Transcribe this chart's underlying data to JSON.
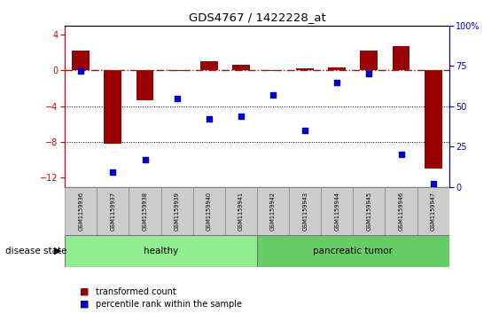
{
  "title": "GDS4767 / 1422228_at",
  "samples": [
    "GSM1159936",
    "GSM1159937",
    "GSM1159938",
    "GSM1159939",
    "GSM1159940",
    "GSM1159941",
    "GSM1159942",
    "GSM1159943",
    "GSM1159944",
    "GSM1159945",
    "GSM1159946",
    "GSM1159947"
  ],
  "transformed_count": [
    2.2,
    -8.2,
    -3.3,
    -0.05,
    1.0,
    0.6,
    -0.1,
    0.2,
    0.3,
    2.2,
    2.7,
    -11.0
  ],
  "percentile_rank": [
    72,
    9,
    17,
    55,
    42,
    44,
    57,
    35,
    65,
    70,
    20,
    2
  ],
  "bar_color": "#990000",
  "dot_color": "#0000cc",
  "ref_line_color": "#cc0000",
  "ylim_left": [
    -13,
    5
  ],
  "ylim_right": [
    0,
    100
  ],
  "yticks_left": [
    4,
    0,
    -4,
    -8,
    -12
  ],
  "yticks_right": [
    0,
    25,
    50,
    75,
    100
  ],
  "healthy_count": 6,
  "tumor_count": 6,
  "healthy_label": "healthy",
  "tumor_label": "pancreatic tumor",
  "disease_state_label": "disease state",
  "legend_bar_label": "transformed count",
  "legend_dot_label": "percentile rank within the sample",
  "healthy_color": "#90EE90",
  "tumor_color": "#66CC66",
  "label_bg_color": "#cccccc",
  "bar_width": 0.55,
  "dot_size": 22,
  "figsize": [
    5.63,
    3.63
  ],
  "dpi": 100
}
